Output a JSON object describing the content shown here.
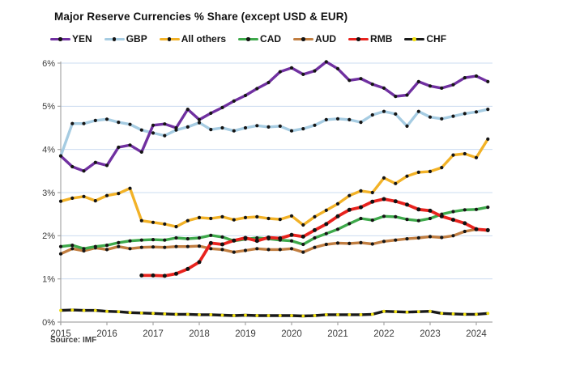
{
  "title": "Major Reserve Currencies % Share (except USD & EUR)",
  "source": "Source: IMF",
  "chart_data": {
    "type": "line",
    "title": "Major Reserve Currencies % Share (except USD & EUR)",
    "xlabel": "",
    "ylabel": "",
    "ylim": [
      0,
      6
    ],
    "y_tick_labels": [
      "0%",
      "1%",
      "2%",
      "3%",
      "4%",
      "5%",
      "6%"
    ],
    "x_tick_labels": [
      "2015",
      "2016",
      "2017",
      "2018",
      "2019",
      "2020",
      "2021",
      "2022",
      "2023",
      "2024"
    ],
    "grid": true,
    "legend_position": "top",
    "x": [
      "2015Q1",
      "2015Q2",
      "2015Q3",
      "2015Q4",
      "2016Q1",
      "2016Q2",
      "2016Q3",
      "2016Q4",
      "2017Q1",
      "2017Q2",
      "2017Q3",
      "2017Q4",
      "2018Q1",
      "2018Q2",
      "2018Q3",
      "2018Q4",
      "2019Q1",
      "2019Q2",
      "2019Q3",
      "2019Q4",
      "2020Q1",
      "2020Q2",
      "2020Q3",
      "2020Q4",
      "2021Q1",
      "2021Q2",
      "2021Q3",
      "2021Q4",
      "2022Q1",
      "2022Q2",
      "2022Q3",
      "2022Q4",
      "2023Q1",
      "2023Q2",
      "2023Q3",
      "2023Q4",
      "2024Q1",
      "2024Q2"
    ],
    "series": [
      {
        "name": "YEN",
        "color": "#7030A0",
        "marker": "#151515",
        "width": 3.4,
        "values": [
          3.85,
          3.6,
          3.5,
          3.7,
          3.63,
          4.05,
          4.1,
          3.94,
          4.56,
          4.59,
          4.5,
          4.93,
          4.69,
          4.84,
          4.97,
          5.12,
          5.25,
          5.41,
          5.55,
          5.8,
          5.89,
          5.74,
          5.82,
          6.03,
          5.87,
          5.6,
          5.64,
          5.51,
          5.42,
          5.23,
          5.26,
          5.57,
          5.47,
          5.42,
          5.5,
          5.66,
          5.7,
          5.57
        ]
      },
      {
        "name": "GBP",
        "color": "#A6CCE2",
        "marker": "#151515",
        "width": 3.4,
        "values": [
          3.85,
          4.6,
          4.6,
          4.67,
          4.7,
          4.63,
          4.58,
          4.45,
          4.38,
          4.32,
          4.45,
          4.52,
          4.62,
          4.46,
          4.5,
          4.43,
          4.5,
          4.55,
          4.52,
          4.54,
          4.43,
          4.48,
          4.56,
          4.69,
          4.71,
          4.69,
          4.63,
          4.8,
          4.88,
          4.82,
          4.54,
          4.88,
          4.75,
          4.71,
          4.77,
          4.83,
          4.87,
          4.93
        ]
      },
      {
        "name": "All others",
        "color": "#F2B227",
        "marker": "#151515",
        "width": 3.4,
        "values": [
          2.8,
          2.87,
          2.91,
          2.81,
          2.93,
          2.98,
          3.1,
          2.35,
          2.31,
          2.27,
          2.21,
          2.35,
          2.42,
          2.4,
          2.44,
          2.37,
          2.42,
          2.44,
          2.4,
          2.38,
          2.46,
          2.25,
          2.44,
          2.59,
          2.74,
          2.93,
          3.04,
          3.0,
          3.34,
          3.21,
          3.38,
          3.47,
          3.49,
          3.58,
          3.87,
          3.9,
          3.81,
          4.24
        ]
      },
      {
        "name": "AUD",
        "color": "#C17E41",
        "marker": "#151515",
        "width": 3.4,
        "values": [
          1.58,
          1.7,
          1.65,
          1.72,
          1.68,
          1.75,
          1.7,
          1.73,
          1.74,
          1.73,
          1.75,
          1.75,
          1.76,
          1.7,
          1.68,
          1.62,
          1.66,
          1.7,
          1.68,
          1.68,
          1.7,
          1.62,
          1.73,
          1.8,
          1.83,
          1.82,
          1.84,
          1.81,
          1.87,
          1.9,
          1.93,
          1.95,
          1.98,
          1.96,
          2.0,
          2.1,
          2.15,
          2.12
        ]
      },
      {
        "name": "CAD",
        "color": "#3EA94B",
        "marker": "#151515",
        "width": 3.4,
        "values": [
          1.75,
          1.78,
          1.7,
          1.75,
          1.78,
          1.84,
          1.88,
          1.9,
          1.91,
          1.9,
          1.95,
          1.93,
          1.95,
          2.01,
          1.97,
          1.88,
          1.92,
          1.95,
          1.93,
          1.9,
          1.88,
          1.8,
          1.95,
          2.05,
          2.15,
          2.28,
          2.4,
          2.36,
          2.45,
          2.44,
          2.38,
          2.35,
          2.4,
          2.5,
          2.56,
          2.6,
          2.61,
          2.66
        ]
      },
      {
        "name": "RMB",
        "color": "#E8231E",
        "marker": "#111111",
        "width": 3.8,
        "values": [
          null,
          null,
          null,
          null,
          null,
          null,
          null,
          1.08,
          1.08,
          1.07,
          1.12,
          1.23,
          1.39,
          1.83,
          1.8,
          1.89,
          1.95,
          1.88,
          1.96,
          1.94,
          2.02,
          1.98,
          2.13,
          2.27,
          2.45,
          2.6,
          2.66,
          2.79,
          2.85,
          2.8,
          2.72,
          2.61,
          2.58,
          2.45,
          2.37,
          2.29,
          2.15,
          2.13
        ]
      },
      {
        "name": "CHF",
        "color": "#1A1A1A",
        "marker": "#F2E10C",
        "width": 3.4,
        "values": [
          0.27,
          0.28,
          0.27,
          0.27,
          0.25,
          0.24,
          0.22,
          0.21,
          0.2,
          0.19,
          0.18,
          0.18,
          0.17,
          0.17,
          0.16,
          0.15,
          0.16,
          0.15,
          0.15,
          0.15,
          0.15,
          0.14,
          0.15,
          0.17,
          0.17,
          0.17,
          0.17,
          0.18,
          0.25,
          0.24,
          0.23,
          0.24,
          0.25,
          0.2,
          0.19,
          0.18,
          0.18,
          0.2
        ]
      }
    ],
    "legend_order": [
      "YEN",
      "GBP",
      "All others",
      "CAD",
      "AUD",
      "RMB",
      "CHF"
    ],
    "grid_color": "#CBDCF0",
    "axis_color": "#A6A6A6"
  }
}
